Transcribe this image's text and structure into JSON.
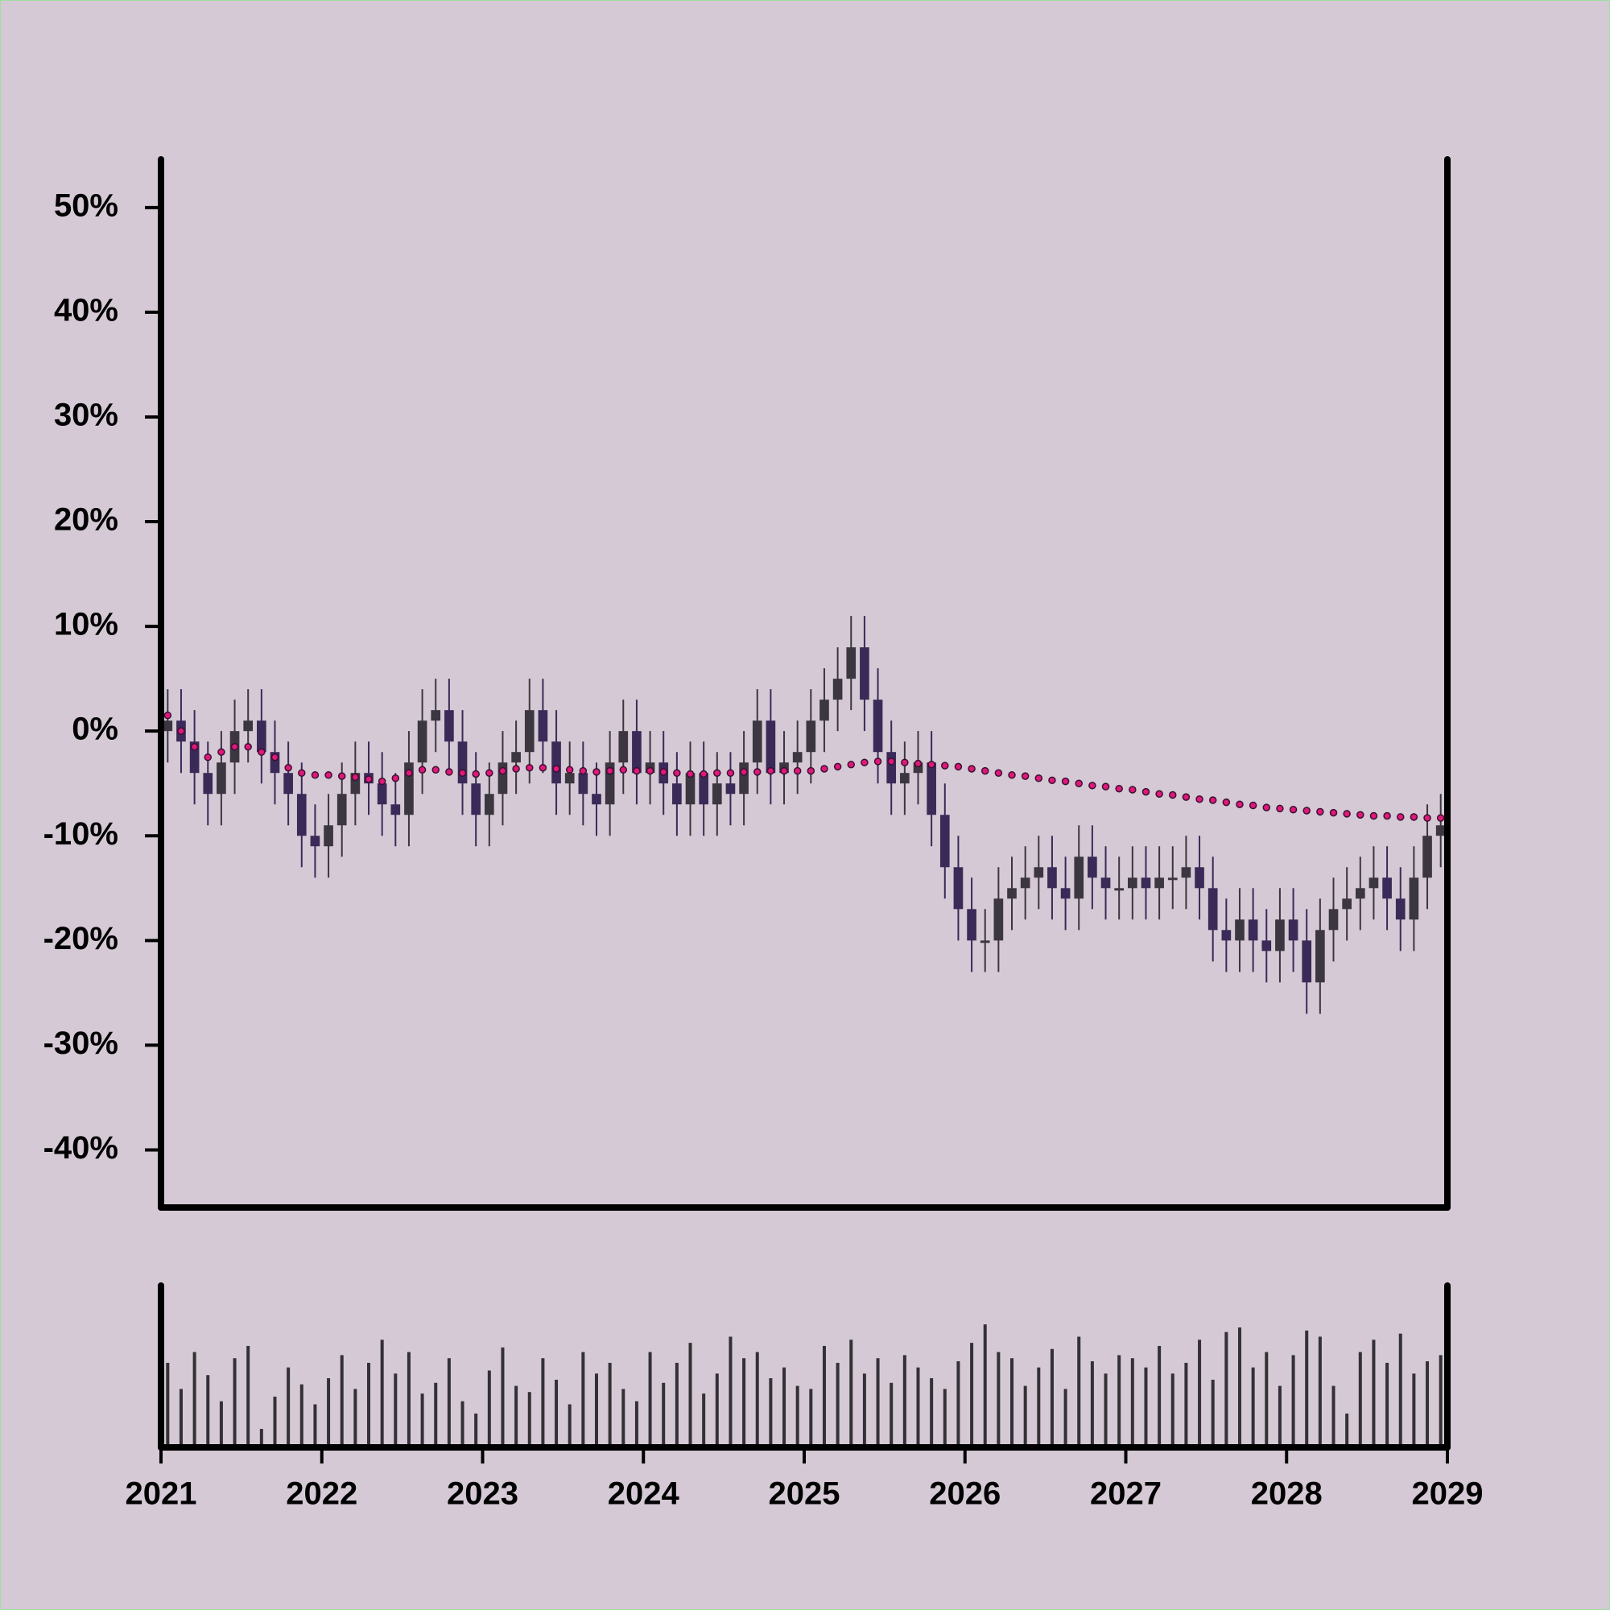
{
  "chart_data": {
    "type": "candlestick",
    "x": [
      "2021-01",
      "2021-02",
      "2021-03",
      "2021-04",
      "2021-05",
      "2021-06",
      "2021-07",
      "2021-08",
      "2021-09",
      "2021-10",
      "2021-11",
      "2021-12",
      "2022-01",
      "2022-02",
      "2022-03",
      "2022-04",
      "2022-05",
      "2022-06",
      "2022-07",
      "2022-08",
      "2022-09",
      "2022-10",
      "2022-11",
      "2022-12",
      "2023-01",
      "2023-02",
      "2023-03",
      "2023-04",
      "2023-05",
      "2023-06",
      "2023-07",
      "2023-08",
      "2023-09",
      "2023-10",
      "2023-11",
      "2023-12",
      "2024-01",
      "2024-02",
      "2024-03",
      "2024-04",
      "2024-05",
      "2024-06",
      "2024-07",
      "2024-08",
      "2024-09",
      "2024-10",
      "2024-11",
      "2024-12",
      "2025-01",
      "2025-02",
      "2025-03",
      "2025-04",
      "2025-05",
      "2025-06",
      "2025-07",
      "2025-08",
      "2025-09",
      "2025-10",
      "2025-11",
      "2025-12",
      "2026-01",
      "2026-02",
      "2026-03",
      "2026-04",
      "2026-05",
      "2026-06",
      "2026-07",
      "2026-08",
      "2026-09",
      "2026-10",
      "2026-11",
      "2026-12",
      "2027-01",
      "2027-02",
      "2027-03",
      "2027-04",
      "2027-05",
      "2027-06",
      "2027-07",
      "2027-08",
      "2027-09",
      "2027-10",
      "2027-11",
      "2027-12",
      "2028-01",
      "2028-02",
      "2028-03",
      "2028-04",
      "2028-05",
      "2028-06",
      "2028-07",
      "2028-08",
      "2028-09",
      "2028-10",
      "2028-11",
      "2028-12"
    ],
    "open": [
      0,
      1,
      -1,
      -4,
      -6,
      -3,
      0,
      1,
      -2,
      -4,
      -6,
      -10,
      -11,
      -9,
      -6,
      -4,
      -5,
      -7,
      -8,
      -3,
      1,
      2,
      -1,
      -5,
      -8,
      -6,
      -3,
      -2,
      2,
      -1,
      -5,
      -4,
      -6,
      -7,
      -3,
      0,
      -4,
      -3,
      -5,
      -7,
      -4,
      -7,
      -5,
      -6,
      -3,
      1,
      -4,
      -3,
      -2,
      1,
      3,
      5,
      8,
      3,
      -2,
      -5,
      -4,
      -3,
      -8,
      -13,
      -17,
      -20,
      -20,
      -16,
      -15,
      -14,
      -13,
      -15,
      -16,
      -12,
      -14,
      -15,
      -15,
      -14,
      -15,
      -14,
      -14,
      -13,
      -15,
      -19,
      -20,
      -18,
      -20,
      -21,
      -18,
      -20,
      -24,
      -19,
      -17,
      -16,
      -15,
      -14,
      -16,
      -18,
      -14,
      -10
    ],
    "high": [
      4,
      4,
      2,
      -1,
      0,
      3,
      4,
      4,
      1,
      -1,
      -3,
      -7,
      -6,
      -3,
      -1,
      -1,
      -2,
      -4,
      0,
      4,
      5,
      5,
      2,
      -2,
      -3,
      0,
      1,
      5,
      5,
      2,
      -1,
      -1,
      -3,
      0,
      3,
      3,
      0,
      0,
      -2,
      -1,
      -1,
      -2,
      -2,
      0,
      4,
      4,
      0,
      1,
      4,
      6,
      8,
      11,
      11,
      6,
      1,
      -1,
      0,
      0,
      -5,
      -10,
      -14,
      -17,
      -13,
      -12,
      -11,
      -10,
      -10,
      -12,
      -9,
      -9,
      -11,
      -12,
      -11,
      -11,
      -11,
      -11,
      -10,
      -10,
      -12,
      -16,
      -15,
      -15,
      -17,
      -15,
      -15,
      -17,
      -16,
      -14,
      -13,
      -12,
      -11,
      -11,
      -13,
      -11,
      -7,
      -6
    ],
    "low": [
      -3,
      -4,
      -7,
      -9,
      -9,
      -6,
      -3,
      -5,
      -7,
      -9,
      -13,
      -14,
      -14,
      -12,
      -9,
      -8,
      -10,
      -11,
      -11,
      -6,
      -2,
      -4,
      -8,
      -11,
      -11,
      -9,
      -6,
      -5,
      -4,
      -8,
      -8,
      -9,
      -10,
      -10,
      -6,
      -7,
      -7,
      -8,
      -10,
      -10,
      -10,
      -10,
      -9,
      -9,
      -6,
      -7,
      -7,
      -6,
      -5,
      -2,
      0,
      2,
      0,
      -5,
      -8,
      -8,
      -7,
      -11,
      -16,
      -20,
      -23,
      -23,
      -23,
      -19,
      -18,
      -17,
      -18,
      -19,
      -19,
      -17,
      -18,
      -18,
      -18,
      -18,
      -18,
      -17,
      -17,
      -18,
      -22,
      -23,
      -23,
      -23,
      -24,
      -24,
      -23,
      -27,
      -27,
      -22,
      -20,
      -19,
      -18,
      -19,
      -21,
      -21,
      -17,
      -13
    ],
    "close": [
      1,
      -1,
      -4,
      -6,
      -3,
      0,
      1,
      -2,
      -4,
      -6,
      -10,
      -11,
      -9,
      -6,
      -4,
      -5,
      -7,
      -8,
      -3,
      1,
      2,
      -1,
      -5,
      -8,
      -6,
      -3,
      -2,
      2,
      -1,
      -5,
      -4,
      -6,
      -7,
      -3,
      0,
      -4,
      -3,
      -5,
      -7,
      -4,
      -7,
      -5,
      -6,
      -3,
      1,
      -4,
      -3,
      -2,
      1,
      3,
      5,
      8,
      3,
      -2,
      -5,
      -4,
      -3,
      -8,
      -13,
      -17,
      -20,
      -20,
      -16,
      -15,
      -14,
      -13,
      -15,
      -16,
      -12,
      -14,
      -15,
      -15,
      -14,
      -15,
      -14,
      -14,
      -13,
      -15,
      -19,
      -20,
      -18,
      -20,
      -21,
      -18,
      -20,
      -24,
      -19,
      -17,
      -16,
      -15,
      -14,
      -16,
      -18,
      -14,
      -10,
      -9
    ],
    "volume": [
      55,
      38,
      62,
      47,
      30,
      58,
      66,
      12,
      33,
      52,
      41,
      28,
      45,
      60,
      38,
      55,
      70,
      48,
      62,
      35,
      42,
      58,
      30,
      22,
      50,
      65,
      40,
      36,
      58,
      44,
      28,
      62,
      48,
      55,
      38,
      30,
      62,
      42,
      55,
      68,
      35,
      48,
      72,
      58,
      62,
      45,
      52,
      40,
      38,
      66,
      55,
      70,
      48,
      58,
      42,
      60,
      52,
      45,
      38,
      56,
      68,
      80,
      62,
      58,
      40,
      52,
      64,
      38,
      72,
      56,
      48,
      60,
      58,
      52,
      66,
      48,
      55,
      70,
      44,
      75,
      78,
      52,
      62,
      40,
      60,
      76,
      72,
      40,
      22,
      62,
      70,
      55,
      74,
      48,
      56,
      60
    ],
    "ma": [
      1.5,
      0,
      -1.5,
      -2.5,
      -2,
      -1.5,
      -1.5,
      -2,
      -2.5,
      -3.5,
      -4,
      -4.2,
      -4.2,
      -4.3,
      -4.4,
      -4.6,
      -4.8,
      -4.5,
      -4,
      -3.7,
      -3.7,
      -3.9,
      -4,
      -4.1,
      -4,
      -3.8,
      -3.6,
      -3.5,
      -3.5,
      -3.6,
      -3.7,
      -3.8,
      -3.9,
      -3.8,
      -3.7,
      -3.8,
      -3.8,
      -3.9,
      -4,
      -4.1,
      -4.1,
      -4,
      -4,
      -3.9,
      -3.9,
      -3.8,
      -3.8,
      -3.8,
      -3.8,
      -3.6,
      -3.4,
      -3.2,
      -3,
      -2.9,
      -2.9,
      -3,
      -3.1,
      -3.2,
      -3.3,
      -3.4,
      -3.6,
      -3.8,
      -4,
      -4.2,
      -4.3,
      -4.5,
      -4.7,
      -4.8,
      -5,
      -5.2,
      -5.3,
      -5.5,
      -5.6,
      -5.8,
      -6,
      -6.1,
      -6.3,
      -6.5,
      -6.6,
      -6.8,
      -7,
      -7.1,
      -7.3,
      -7.4,
      -7.5,
      -7.6,
      -7.7,
      -7.8,
      -7.9,
      -8,
      -8.1,
      -8.1,
      -8.2,
      -8.2,
      -8.3,
      -8.3
    ],
    "up_color": "#3b3640",
    "down_color": "#3a2a58",
    "ma_color": "#e0187a",
    "volume_color": "#333036",
    "xlim": [
      2021,
      2029
    ],
    "xticks": [
      2021,
      2022,
      2023,
      2024,
      2025,
      2026,
      2027,
      2028,
      2029
    ],
    "ylim": [
      -45.5,
      54.6
    ],
    "yticks": [
      {
        "value": -40,
        "label": "-40%"
      },
      {
        "value": -30,
        "label": "-30%"
      },
      {
        "value": -20,
        "label": "-20%"
      },
      {
        "value": -10,
        "label": "-10%"
      },
      {
        "value": 0,
        "label": "0%"
      },
      {
        "value": 10,
        "label": "10%"
      },
      {
        "value": 20,
        "label": "20%"
      },
      {
        "value": 30,
        "label": "30%"
      },
      {
        "value": 40,
        "label": "40%"
      },
      {
        "value": 50,
        "label": "50%"
      }
    ],
    "volume_ylim": [
      0,
      100
    ]
  }
}
